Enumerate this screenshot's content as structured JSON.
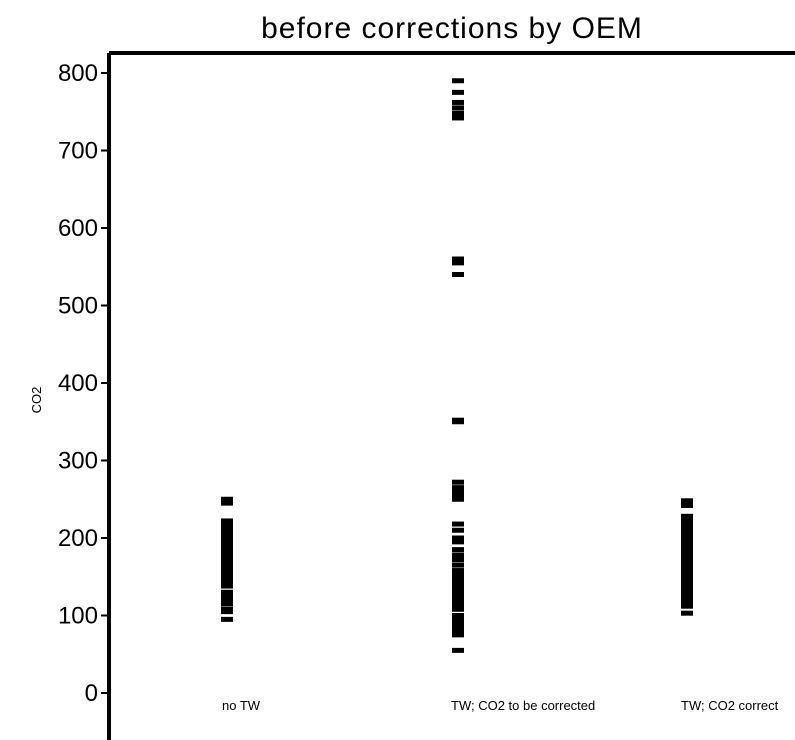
{
  "chart_data": {
    "type": "scatter",
    "title": "before corrections by OEM",
    "xlabel": "",
    "ylabel": "CO2",
    "ylim": [
      0,
      800
    ],
    "yticks": [
      0,
      100,
      200,
      300,
      400,
      500,
      600,
      700,
      800
    ],
    "grid": false,
    "marker": "short horizontal dash",
    "categories": [
      "no TW",
      "TW; CO2 to be corrected",
      "TW; CO2 correct"
    ],
    "series": [
      {
        "category": "no TW",
        "values": [
          95,
          105,
          108,
          115,
          120,
          125,
          130,
          138,
          142,
          145,
          148,
          152,
          155,
          158,
          162,
          165,
          168,
          172,
          175,
          178,
          182,
          185,
          188,
          192,
          195,
          198,
          202,
          205,
          208,
          212,
          218,
          222,
          245,
          250
        ]
      },
      {
        "category": "TW; CO2 to be corrected",
        "values": [
          55,
          75,
          80,
          85,
          90,
          95,
          100,
          108,
          112,
          118,
          122,
          128,
          132,
          138,
          142,
          148,
          152,
          158,
          165,
          172,
          178,
          185,
          195,
          200,
          210,
          218,
          250,
          255,
          260,
          265,
          272,
          350,
          352,
          540,
          555,
          560,
          742,
          748,
          755,
          762,
          775,
          790
        ]
      },
      {
        "category": "TW; CO2 correct",
        "values": [
          103,
          112,
          118,
          122,
          128,
          132,
          138,
          142,
          148,
          152,
          158,
          162,
          168,
          172,
          178,
          182,
          188,
          192,
          198,
          202,
          208,
          212,
          218,
          222,
          228,
          242,
          248
        ]
      }
    ]
  }
}
